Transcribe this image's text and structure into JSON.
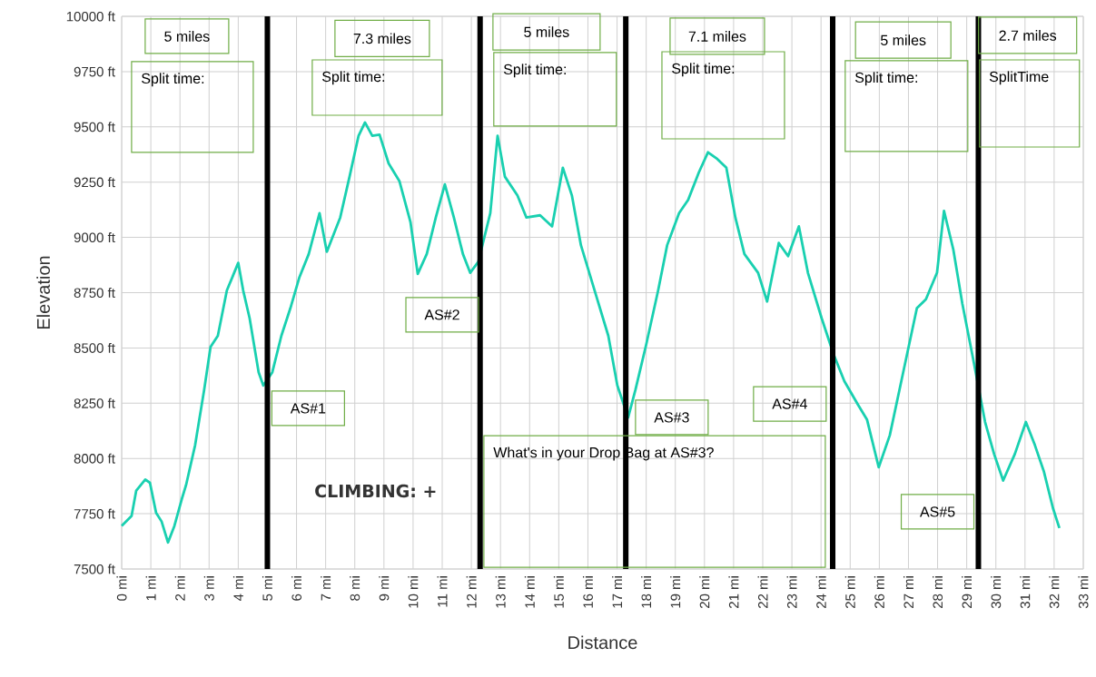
{
  "chart_data": {
    "type": "line",
    "xlabel": "Distance",
    "ylabel": "Elevation",
    "xlim": [
      0,
      33
    ],
    "ylim": [
      7500,
      10000
    ],
    "xticks": [
      {
        "value": 0,
        "label": "0 mi"
      },
      {
        "value": 1,
        "label": "1 mi"
      },
      {
        "value": 2,
        "label": "2 mi"
      },
      {
        "value": 3,
        "label": "3 mi"
      },
      {
        "value": 4,
        "label": "4 mi"
      },
      {
        "value": 5,
        "label": "5 mi"
      },
      {
        "value": 6,
        "label": "6 mi"
      },
      {
        "value": 7,
        "label": "7 mi"
      },
      {
        "value": 8,
        "label": "8 mi"
      },
      {
        "value": 9,
        "label": "9 mi"
      },
      {
        "value": 10,
        "label": "10 mi"
      },
      {
        "value": 11,
        "label": "11 mi"
      },
      {
        "value": 12,
        "label": "12 mi"
      },
      {
        "value": 13,
        "label": "13 mi"
      },
      {
        "value": 14,
        "label": "14 mi"
      },
      {
        "value": 15,
        "label": "15 mi"
      },
      {
        "value": 16,
        "label": "16 mi"
      },
      {
        "value": 17,
        "label": "17 mi"
      },
      {
        "value": 18,
        "label": "18 mi"
      },
      {
        "value": 19,
        "label": "19 mi"
      },
      {
        "value": 20,
        "label": "20 mi"
      },
      {
        "value": 21,
        "label": "21 mi"
      },
      {
        "value": 22,
        "label": "22 mi"
      },
      {
        "value": 23,
        "label": "23 mi"
      },
      {
        "value": 24,
        "label": "24 mi"
      },
      {
        "value": 25,
        "label": "25 mi"
      },
      {
        "value": 26,
        "label": "26 mi"
      },
      {
        "value": 27,
        "label": "27 mi"
      },
      {
        "value": 28,
        "label": "28 mi"
      },
      {
        "value": 29,
        "label": "29 mi"
      },
      {
        "value": 30,
        "label": "30 mi"
      },
      {
        "value": 31,
        "label": "31 mi"
      },
      {
        "value": 32,
        "label": "32 mi"
      },
      {
        "value": 33,
        "label": "33 mi"
      }
    ],
    "yticks": [
      {
        "value": 7500,
        "label": "7500 ft"
      },
      {
        "value": 7750,
        "label": "7750 ft"
      },
      {
        "value": 8000,
        "label": "8000 ft"
      },
      {
        "value": 8250,
        "label": "8250 ft"
      },
      {
        "value": 8500,
        "label": "8500 ft"
      },
      {
        "value": 8750,
        "label": "8750 ft"
      },
      {
        "value": 9000,
        "label": "9000 ft"
      },
      {
        "value": 9250,
        "label": "9250 ft"
      },
      {
        "value": 9500,
        "label": "9500 ft"
      },
      {
        "value": 9750,
        "label": "9750 ft"
      },
      {
        "value": 10000,
        "label": "10000 ft"
      }
    ],
    "grid": true,
    "series": [
      {
        "color": "#19d0b0",
        "x": [
          0,
          0.34,
          0.5,
          0.81,
          0.97,
          1.18,
          1.37,
          1.59,
          1.81,
          2.06,
          2.21,
          2.52,
          2.83,
          3.05,
          3.3,
          3.61,
          4.0,
          4.17,
          4.39,
          4.7,
          4.86,
          5.17,
          5.48,
          5.79,
          6.1,
          6.42,
          6.79,
          7.04,
          7.5,
          7.82,
          8.13,
          8.35,
          8.6,
          8.85,
          9.16,
          9.53,
          9.91,
          10.16,
          10.47,
          10.78,
          11.09,
          11.4,
          11.71,
          11.96,
          12.24,
          12.65,
          12.9,
          13.15,
          13.58,
          13.89,
          14.36,
          14.77,
          15.14,
          15.45,
          15.76,
          16.23,
          16.7,
          17.01,
          17.38,
          17.63,
          18.0,
          18.41,
          18.72,
          19.13,
          19.44,
          19.81,
          20.12,
          20.44,
          20.75,
          21.06,
          21.37,
          21.84,
          22.15,
          22.55,
          22.87,
          23.24,
          23.55,
          24.02,
          24.42,
          24.8,
          25.26,
          25.58,
          25.98,
          26.36,
          26.82,
          27.29,
          27.6,
          27.98,
          28.22,
          28.54,
          28.85,
          29.22,
          29.63,
          29.94,
          30.25,
          30.65,
          31.03,
          31.34,
          31.65,
          31.96,
          32.18
        ],
        "values": [
          7695,
          7740,
          7855,
          7905,
          7890,
          7755,
          7715,
          7620,
          7695,
          7815,
          7880,
          8060,
          8310,
          8505,
          8555,
          8760,
          8885,
          8760,
          8635,
          8390,
          8330,
          8390,
          8555,
          8680,
          8820,
          8925,
          9110,
          8935,
          9090,
          9275,
          9460,
          9520,
          9460,
          9465,
          9335,
          9255,
          9070,
          8835,
          8925,
          9090,
          9240,
          9090,
          8925,
          8840,
          8890,
          9110,
          9460,
          9275,
          9190,
          9090,
          9100,
          9050,
          9315,
          9190,
          8965,
          8760,
          8555,
          8330,
          8185,
          8310,
          8515,
          8760,
          8965,
          9110,
          9170,
          9295,
          9385,
          9355,
          9315,
          9090,
          8925,
          8840,
          8710,
          8975,
          8915,
          9050,
          8840,
          8635,
          8475,
          8350,
          8245,
          8175,
          7960,
          8105,
          8390,
          8680,
          8720,
          8840,
          9120,
          8945,
          8700,
          8450,
          8165,
          8020,
          7900,
          8020,
          8165,
          8060,
          7940,
          7775,
          7685
        ]
      }
    ],
    "ref_lines": [
      {
        "axis": "x",
        "value": 5,
        "label": "AS#1",
        "color": "#000000"
      },
      {
        "axis": "x",
        "value": 12.3,
        "label": "AS#2",
        "color": "#000000"
      },
      {
        "axis": "x",
        "value": 17.3,
        "label": "AS#3",
        "color": "#000000"
      },
      {
        "axis": "x",
        "value": 24.4,
        "label": "AS#4",
        "color": "#000000"
      },
      {
        "axis": "x",
        "value": 29.4,
        "label": "AS#5",
        "color": "#000000"
      }
    ],
    "annotations": [
      "5 miles",
      "7.3 miles",
      "5 miles",
      "7.1 miles",
      "5 miles",
      "2.7 miles",
      "Split time:",
      "Split time:",
      "Split time:",
      "Split time:",
      "Split time:",
      "SplitTime",
      "What's in your Drop Bag at AS#3?",
      "CLIMBING: +"
    ]
  }
}
